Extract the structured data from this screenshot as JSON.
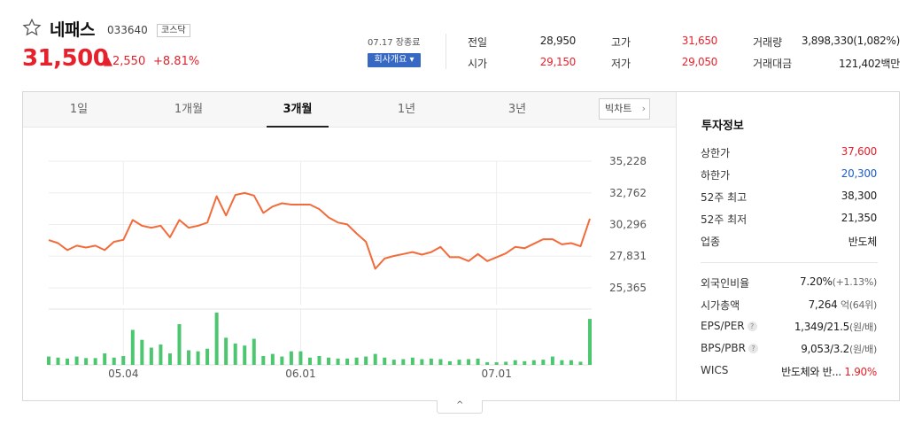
{
  "stock": {
    "name": "네패스",
    "code": "033640",
    "market": "코스닥",
    "price": "31,500",
    "change": "▲2,550",
    "change_pct": "+8.81%",
    "market_date": "07.17 장종료",
    "company_info_button": "회사개요 ▾"
  },
  "quote": [
    {
      "label": "전일",
      "value": "28,950",
      "tone": "dark"
    },
    {
      "label": "시가",
      "value": "29,150",
      "tone": "red"
    },
    {
      "label": "고가",
      "value": "31,650",
      "tone": "red"
    },
    {
      "label": "저가",
      "value": "29,050",
      "tone": "red"
    },
    {
      "label": "거래량",
      "value": "3,898,330(1,082%)",
      "tone": "dark"
    },
    {
      "label": "거래대금",
      "value": "121,402백만",
      "tone": "dark"
    }
  ],
  "tabs": [
    "1일",
    "1개월",
    "3개월",
    "1년",
    "3년"
  ],
  "active_tab": "3개월",
  "big_chart_button": "빅차트",
  "investment": {
    "title": "투자정보",
    "rows1": [
      {
        "label": "상한가",
        "value": "37,600",
        "tone": "red"
      },
      {
        "label": "하한가",
        "value": "20,300",
        "tone": "blue"
      },
      {
        "label": "52주 최고",
        "value": "38,300",
        "tone": "dark"
      },
      {
        "label": "52주 최저",
        "value": "21,350",
        "tone": "dark"
      },
      {
        "label": "업종",
        "value": "반도체",
        "tone": "dark"
      }
    ],
    "foreign_ratio": {
      "label": "외국인비율",
      "value": "7.20%",
      "sub": "(+1.13%)"
    },
    "market_cap": {
      "label": "시가총액",
      "value": "7,264",
      "sub": "억(64위)"
    },
    "eps_per": {
      "label": "EPS/PER",
      "value": "1,349/21.5",
      "sub": "(원/배)"
    },
    "bps_pbr": {
      "label": "BPS/PBR",
      "value": "9,053/3.2",
      "sub": "(원/배)"
    },
    "wics": {
      "label": "WICS",
      "value": "반도체와 반...",
      "pct": "1.90%"
    },
    "hint_icon": "?"
  },
  "collapse_icon": "^",
  "colors": {
    "up": "#e6212b",
    "down": "#1f5cc9",
    "price_line": "#f26b3a",
    "volume": "#4cc76f"
  },
  "chart_data": {
    "type": "line",
    "y_ticks": [
      "35,228",
      "32,762",
      "30,296",
      "27,831",
      "25,365"
    ],
    "y_tick_values": [
      35228,
      32762,
      30296,
      27831,
      25365
    ],
    "x_ticks": [
      {
        "label": "05.04",
        "index": 8
      },
      {
        "label": "06.01",
        "index": 27
      },
      {
        "label": "07.01",
        "index": 48
      }
    ],
    "series": [
      {
        "values": [
          29080,
          28850,
          28300,
          28650,
          28500,
          28650,
          28300,
          28950,
          29100,
          30650,
          30200,
          30050,
          30200,
          29300,
          30650,
          30050,
          30200,
          30450,
          32500,
          31000,
          32600,
          32750,
          32550,
          31200,
          31700,
          31950,
          31850,
          31850,
          31850,
          31500,
          30850,
          30450,
          30300,
          29600,
          28950,
          26850,
          27650,
          27850,
          28000,
          28150,
          27950,
          28150,
          28550,
          27750,
          27750,
          27450,
          28000,
          27450,
          27750,
          28050,
          28550,
          28450,
          28800,
          29150,
          29150,
          28750,
          28850,
          28600,
          30750
        ]
      },
      {
        "name": "거래량",
        "values": [
          16,
          14,
          12,
          16,
          13,
          13,
          22,
          14,
          17,
          67,
          48,
          33,
          39,
          22,
          78,
          28,
          26,
          31,
          100,
          52,
          41,
          37,
          50,
          17,
          21,
          16,
          26,
          26,
          14,
          17,
          14,
          12,
          12,
          14,
          16,
          21,
          14,
          10,
          11,
          14,
          11,
          12,
          11,
          7,
          10,
          11,
          12,
          5,
          5,
          6,
          9,
          7,
          9,
          10,
          16,
          9,
          9,
          6,
          88
        ]
      }
    ]
  }
}
